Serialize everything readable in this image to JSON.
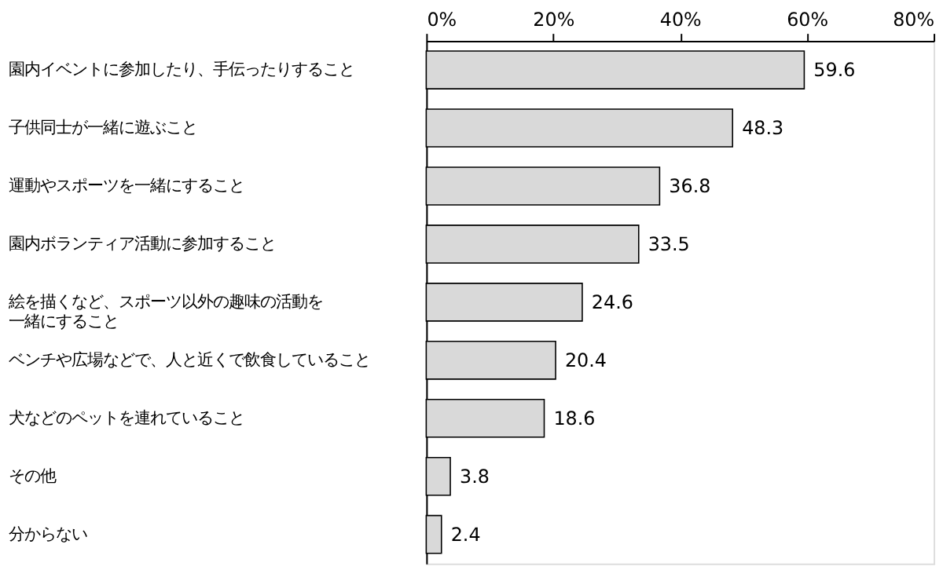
{
  "chart_data": {
    "type": "bar",
    "orientation": "horizontal",
    "categories": [
      "園内イベントに参加したり、手伝ったりすること",
      "子供同士が一緒に遊ぶこと",
      "運動やスポーツを一緒にすること",
      "園内ボランティア活動に参加すること",
      "絵を描くなど、スポーツ以外の趣味の活動を一緒にすること",
      "ベンチや広場などで、人と近くで飲食していること",
      "犬などのペットを連れていること",
      "その他",
      "分からない"
    ],
    "values": [
      59.6,
      48.3,
      36.8,
      33.5,
      24.6,
      20.4,
      18.6,
      3.8,
      2.4
    ],
    "color": "#d9d9d9",
    "xlim": [
      0,
      80
    ],
    "xticks": [
      {
        "value": 0,
        "label": "0%"
      },
      {
        "value": 20,
        "label": "20%"
      },
      {
        "value": 40,
        "label": "40%"
      },
      {
        "value": 60,
        "label": "60%"
      },
      {
        "value": 80,
        "label": "80%"
      }
    ],
    "data_labels": true,
    "grid": false
  }
}
